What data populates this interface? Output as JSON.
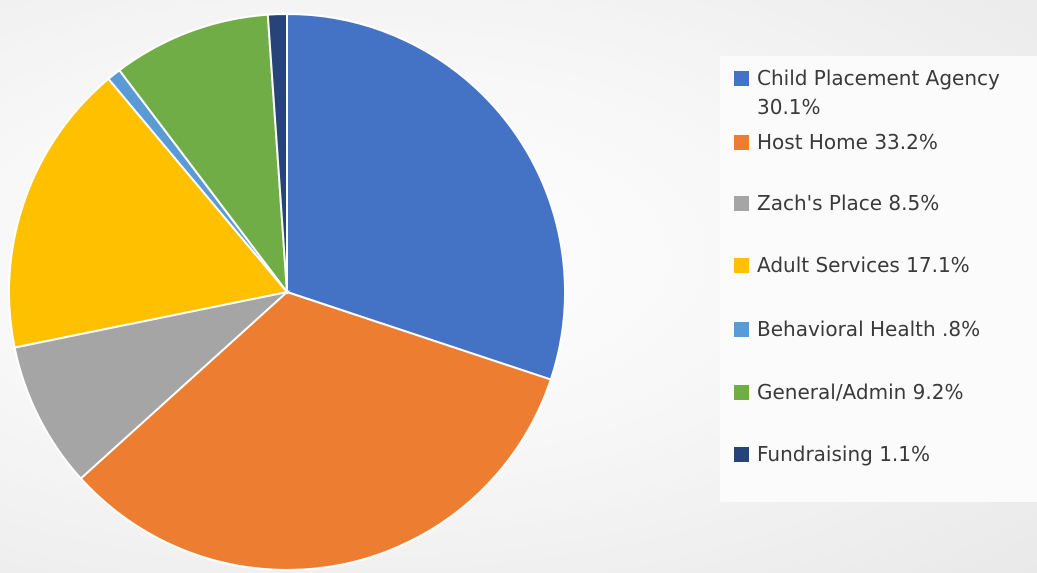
{
  "chart_data": {
    "type": "pie",
    "start_angle_deg": 0,
    "direction": "clockwise",
    "slices": [
      {
        "label": "Child Placement Agency 30.1%",
        "value": 30.1,
        "color": "#4472C4"
      },
      {
        "label": "Host Home 33.2%",
        "value": 33.2,
        "color": "#ED7D31"
      },
      {
        "label": "Zach's Place 8.5%",
        "value": 8.5,
        "color": "#A5A5A5"
      },
      {
        "label": "Adult Services 17.1%",
        "value": 17.1,
        "color": "#FFC000"
      },
      {
        "label": "Behavioral Health .8%",
        "value": 0.8,
        "color": "#5B9BD5"
      },
      {
        "label": "General/Admin 9.2%",
        "value": 9.2,
        "color": "#70AD47"
      },
      {
        "label": "Fundraising 1.1%",
        "value": 1.1,
        "color": "#264478"
      }
    ],
    "legend": {
      "position": "right",
      "entries": [
        "Child Placement Agency\n30.1%",
        "Host Home 33.2%",
        "Zach's Place 8.5%",
        "Adult Services 17.1%",
        "Behavioral Health .8%",
        "General/Admin 9.2%",
        "Fundraising 1.1%"
      ]
    }
  }
}
